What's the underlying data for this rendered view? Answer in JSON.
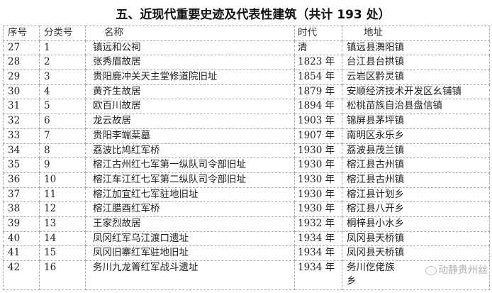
{
  "title": "五、近现代重要史迹及代表性建筑（共计 193 处）",
  "headers": [
    "序号",
    "分类号",
    "名称",
    "时代",
    "地址"
  ],
  "rows": [
    [
      "27",
      "1",
      "镇远和公祠",
      "清",
      "镇远县㵲阳镇"
    ],
    [
      "28",
      "2",
      "张秀眉故居",
      "1823 年",
      "台江县台拱镇"
    ],
    [
      "29",
      "3",
      "贵阳鹿冲关天主堂修道院旧址",
      "1854 年",
      "云岩区黔灵镇"
    ],
    [
      "30",
      "4",
      "黄齐生故居",
      "1879 年",
      "安顺经济技术开发区幺铺镇"
    ],
    [
      "31",
      "5",
      "欧百川故居",
      "1894 年",
      "松桃苗族自治县盘信镇"
    ],
    [
      "32",
      "6",
      "龙云故居",
      "1903 年",
      "锦屏县茅坪镇"
    ],
    [
      "33",
      "7",
      "贵阳李端棻墓",
      "1907 年",
      "南明区永乐乡"
    ],
    [
      "34",
      "8",
      "荔波比鸠红军桥",
      "1930 年",
      "荔波县茂兰镇"
    ],
    [
      "35",
      "9",
      "榕江古州红七军第一纵队司令部旧址",
      "1930 年",
      "榕江县古州镇"
    ],
    [
      "36",
      "10",
      "榕江车江红七军第二纵队司令部旧址",
      "1930 年",
      "榕江县古州镇"
    ],
    [
      "37",
      "11",
      "榕江加宜红七军驻地旧址",
      "1930 年",
      "榕江县计划乡"
    ],
    [
      "38",
      "12",
      "榕江腊酉红军桥",
      "1930 年",
      "榕江县八开乡"
    ],
    [
      "39",
      "13",
      "王家烈故居",
      "1932 年",
      "桐梓县小水乡"
    ],
    [
      "40",
      "14",
      "凤冈红军乌江渡口遗址",
      "1934 年",
      "凤冈县天桥镇"
    ],
    [
      "41",
      "15",
      "凤冈旧寨红军驻地旧址",
      "1934 年",
      "凤冈县天桥镇"
    ]
  ],
  "last_row": {
    "no": "42",
    "cat": "16",
    "name": "务川九龙箐红军战斗遗址",
    "era": "1934 年",
    "addr_line1": "务川仡佬族",
    "addr_line2": "乡"
  },
  "watermark": "动静贵州丝"
}
